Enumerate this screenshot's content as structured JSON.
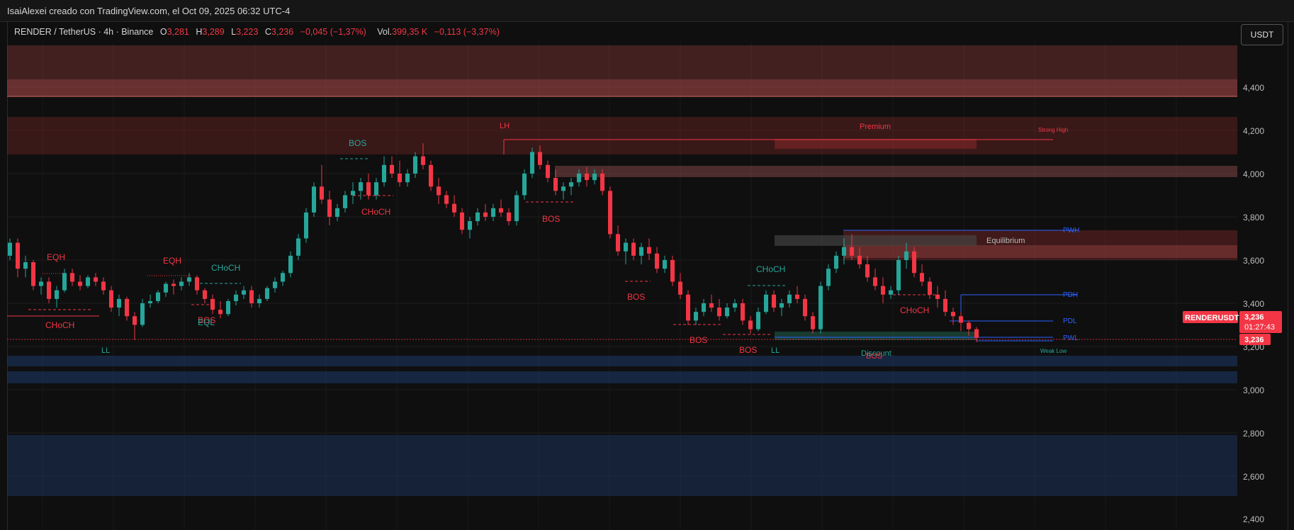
{
  "header": {
    "attribution": "IsaiAlexei creado con TradingView.com, el Oct 09, 2025 06:32 UTC-4"
  },
  "legend": {
    "symbol": "RENDER / TetherUS · 4h · Binance",
    "o_label": "O",
    "o_value": "3,281",
    "h_label": "H",
    "h_value": "3,289",
    "l_label": "L",
    "l_value": "3,223",
    "c_label": "C",
    "c_value": "3,236",
    "change": "−0,045 (−1,37%)",
    "vol_label": "Vol.",
    "vol_value": "399,35 K",
    "vol_change": "−0,113 (−3,37%)"
  },
  "toolbar": {
    "currency_label": "USDT"
  },
  "price_tags": {
    "symbol": "RENDERUSDT",
    "last_price": "3,236",
    "countdown": "01:27:43",
    "level_price": "3,236"
  },
  "colors": {
    "bull": "#26a69a",
    "bear": "#f23645",
    "background": "#0f0f0f",
    "supply_zone": "#8a3a3a",
    "demand_zone": "#1e3a6a",
    "blue_line": "#2962ff"
  },
  "chart_data": {
    "type": "candlestick",
    "symbol": "RENDER / TetherUS",
    "timeframe": "4h",
    "exchange": "Binance",
    "y_axis": {
      "ticks": [
        "4,400",
        "4,200",
        "4,000",
        "3,800",
        "3,600",
        "3,400",
        "3,200",
        "3,000",
        "2,800",
        "2,600",
        "2,400"
      ],
      "range": [
        2.38,
        4.59
      ]
    },
    "grid": true,
    "last": {
      "open": 3.281,
      "high": 3.289,
      "low": 3.223,
      "close": 3.236
    },
    "candles": [
      [
        3.62,
        3.7,
        3.6,
        3.68
      ],
      [
        3.68,
        3.7,
        3.52,
        3.56
      ],
      [
        3.56,
        3.62,
        3.52,
        3.59
      ],
      [
        3.59,
        3.6,
        3.46,
        3.48
      ],
      [
        3.48,
        3.52,
        3.44,
        3.5
      ],
      [
        3.5,
        3.52,
        3.4,
        3.42
      ],
      [
        3.42,
        3.48,
        3.38,
        3.46
      ],
      [
        3.46,
        3.56,
        3.45,
        3.54
      ],
      [
        3.54,
        3.56,
        3.48,
        3.5
      ],
      [
        3.5,
        3.53,
        3.46,
        3.48
      ],
      [
        3.48,
        3.53,
        3.47,
        3.52
      ],
      [
        3.52,
        3.54,
        3.48,
        3.5
      ],
      [
        3.5,
        3.52,
        3.44,
        3.46
      ],
      [
        3.46,
        3.48,
        3.36,
        3.38
      ],
      [
        3.38,
        3.44,
        3.34,
        3.42
      ],
      [
        3.42,
        3.43,
        3.32,
        3.34
      ],
      [
        3.34,
        3.36,
        3.23,
        3.3
      ],
      [
        3.3,
        3.42,
        3.29,
        3.4
      ],
      [
        3.4,
        3.44,
        3.38,
        3.41
      ],
      [
        3.41,
        3.46,
        3.4,
        3.45
      ],
      [
        3.45,
        3.5,
        3.43,
        3.49
      ],
      [
        3.49,
        3.51,
        3.44,
        3.48
      ],
      [
        3.48,
        3.52,
        3.46,
        3.5
      ],
      [
        3.5,
        3.54,
        3.48,
        3.52
      ],
      [
        3.52,
        3.53,
        3.44,
        3.46
      ],
      [
        3.46,
        3.47,
        3.4,
        3.42
      ],
      [
        3.42,
        3.44,
        3.35,
        3.37
      ],
      [
        3.37,
        3.41,
        3.33,
        3.35
      ],
      [
        3.35,
        3.42,
        3.34,
        3.41
      ],
      [
        3.41,
        3.46,
        3.39,
        3.44
      ],
      [
        3.44,
        3.48,
        3.42,
        3.46
      ],
      [
        3.46,
        3.48,
        3.38,
        3.4
      ],
      [
        3.4,
        3.44,
        3.38,
        3.42
      ],
      [
        3.42,
        3.48,
        3.41,
        3.47
      ],
      [
        3.47,
        3.52,
        3.45,
        3.5
      ],
      [
        3.5,
        3.55,
        3.48,
        3.54
      ],
      [
        3.54,
        3.64,
        3.52,
        3.62
      ],
      [
        3.62,
        3.72,
        3.6,
        3.7
      ],
      [
        3.7,
        3.84,
        3.68,
        3.82
      ],
      [
        3.82,
        3.96,
        3.8,
        3.94
      ],
      [
        3.94,
        4.04,
        3.86,
        3.88
      ],
      [
        3.88,
        3.92,
        3.76,
        3.8
      ],
      [
        3.8,
        3.86,
        3.78,
        3.84
      ],
      [
        3.84,
        3.92,
        3.82,
        3.9
      ],
      [
        3.9,
        3.96,
        3.86,
        3.92
      ],
      [
        3.92,
        3.98,
        3.88,
        3.96
      ],
      [
        3.96,
        4.0,
        3.88,
        3.9
      ],
      [
        3.9,
        3.98,
        3.88,
        3.96
      ],
      [
        3.96,
        4.08,
        3.94,
        4.04
      ],
      [
        4.04,
        4.08,
        3.98,
        4.0
      ],
      [
        4.0,
        4.06,
        3.94,
        3.96
      ],
      [
        3.96,
        4.02,
        3.94,
        4.0
      ],
      [
        4.0,
        4.1,
        3.98,
        4.08
      ],
      [
        4.08,
        4.14,
        4.02,
        4.04
      ],
      [
        4.04,
        4.06,
        3.92,
        3.94
      ],
      [
        3.94,
        3.98,
        3.86,
        3.9
      ],
      [
        3.9,
        3.92,
        3.84,
        3.86
      ],
      [
        3.86,
        3.9,
        3.8,
        3.82
      ],
      [
        3.82,
        3.84,
        3.72,
        3.74
      ],
      [
        3.74,
        3.8,
        3.7,
        3.78
      ],
      [
        3.78,
        3.84,
        3.76,
        3.82
      ],
      [
        3.82,
        3.86,
        3.78,
        3.8
      ],
      [
        3.8,
        3.86,
        3.78,
        3.84
      ],
      [
        3.84,
        3.88,
        3.8,
        3.82
      ],
      [
        3.82,
        3.84,
        3.76,
        3.78
      ],
      [
        3.78,
        3.92,
        3.76,
        3.9
      ],
      [
        3.9,
        4.02,
        3.88,
        4.0
      ],
      [
        4.0,
        4.12,
        3.98,
        4.1
      ],
      [
        4.1,
        4.13,
        4.02,
        4.04
      ],
      [
        4.04,
        4.06,
        3.96,
        3.98
      ],
      [
        3.98,
        4.02,
        3.9,
        3.92
      ],
      [
        3.92,
        3.96,
        3.88,
        3.94
      ],
      [
        3.94,
        3.98,
        3.9,
        3.96
      ],
      [
        3.96,
        4.02,
        3.94,
        4.0
      ],
      [
        4.0,
        4.03,
        3.94,
        3.97
      ],
      [
        3.97,
        4.02,
        3.95,
        4.0
      ],
      [
        4.0,
        4.02,
        3.9,
        3.92
      ],
      [
        3.92,
        3.94,
        3.7,
        3.72
      ],
      [
        3.72,
        3.76,
        3.62,
        3.64
      ],
      [
        3.64,
        3.7,
        3.58,
        3.68
      ],
      [
        3.68,
        3.7,
        3.6,
        3.62
      ],
      [
        3.62,
        3.68,
        3.58,
        3.66
      ],
      [
        3.66,
        3.7,
        3.6,
        3.63
      ],
      [
        3.63,
        3.66,
        3.54,
        3.56
      ],
      [
        3.56,
        3.62,
        3.54,
        3.6
      ],
      [
        3.6,
        3.62,
        3.48,
        3.5
      ],
      [
        3.5,
        3.54,
        3.42,
        3.44
      ],
      [
        3.44,
        3.46,
        3.3,
        3.32
      ],
      [
        3.32,
        3.38,
        3.3,
        3.36
      ],
      [
        3.36,
        3.42,
        3.34,
        3.4
      ],
      [
        3.4,
        3.44,
        3.36,
        3.38
      ],
      [
        3.38,
        3.42,
        3.32,
        3.34
      ],
      [
        3.34,
        3.4,
        3.33,
        3.38
      ],
      [
        3.38,
        3.42,
        3.36,
        3.4
      ],
      [
        3.4,
        3.42,
        3.3,
        3.32
      ],
      [
        3.32,
        3.34,
        3.26,
        3.28
      ],
      [
        3.28,
        3.38,
        3.27,
        3.36
      ],
      [
        3.36,
        3.46,
        3.35,
        3.44
      ],
      [
        3.44,
        3.46,
        3.36,
        3.38
      ],
      [
        3.38,
        3.42,
        3.34,
        3.4
      ],
      [
        3.4,
        3.46,
        3.38,
        3.44
      ],
      [
        3.44,
        3.48,
        3.4,
        3.42
      ],
      [
        3.42,
        3.44,
        3.32,
        3.34
      ],
      [
        3.34,
        3.36,
        3.26,
        3.28
      ],
      [
        3.28,
        3.5,
        3.26,
        3.48
      ],
      [
        3.48,
        3.58,
        3.46,
        3.56
      ],
      [
        3.56,
        3.64,
        3.54,
        3.62
      ],
      [
        3.62,
        3.7,
        3.58,
        3.66
      ],
      [
        3.66,
        3.72,
        3.6,
        3.62
      ],
      [
        3.62,
        3.66,
        3.56,
        3.58
      ],
      [
        3.58,
        3.62,
        3.5,
        3.52
      ],
      [
        3.52,
        3.56,
        3.46,
        3.48
      ],
      [
        3.48,
        3.52,
        3.4,
        3.44
      ],
      [
        3.44,
        3.48,
        3.42,
        3.46
      ],
      [
        3.46,
        3.62,
        3.44,
        3.6
      ],
      [
        3.6,
        3.68,
        3.56,
        3.64
      ],
      [
        3.64,
        3.66,
        3.52,
        3.54
      ],
      [
        3.54,
        3.58,
        3.48,
        3.5
      ],
      [
        3.5,
        3.52,
        3.42,
        3.44
      ],
      [
        3.44,
        3.48,
        3.38,
        3.42
      ],
      [
        3.42,
        3.46,
        3.34,
        3.36
      ],
      [
        3.36,
        3.38,
        3.3,
        3.34
      ],
      [
        3.34,
        3.36,
        3.27,
        3.31
      ],
      [
        3.31,
        3.32,
        3.25,
        3.28
      ],
      [
        3.28,
        3.29,
        3.22,
        3.24
      ]
    ]
  },
  "price_labels": {
    "p4400": "4,400",
    "p4200": "4,200",
    "p4000": "4,000",
    "p3800": "3,800",
    "p3600": "3,600",
    "p3400": "3,400",
    "p3200": "3,200",
    "p3000": "3,000",
    "p2800": "2,800",
    "p2600": "2,600",
    "p2400": "2,400"
  },
  "annotations": {
    "eqh_1": "EQH",
    "choch_1": "CHoCH",
    "ll_1": "LL",
    "eqh_2": "EQH",
    "bos_1": "BOS",
    "eql_1": "EQL",
    "choch_2": "CHoCH",
    "bos_2": "BOS",
    "choch_3": "CHoCH",
    "lh_1": "LH",
    "bos_3": "BOS",
    "bos_4": "BOS",
    "bos_5": "BOS",
    "bos_6": "BOS",
    "ll_2": "LL",
    "choch_4": "CHoCH",
    "choch_5": "CHoCH",
    "bos_7": "BOS",
    "premium": "Premium",
    "equilibrium": "Equilibrium",
    "discount": "Discount",
    "strong_high": "Strong High",
    "weak_low": "Weak Low",
    "pwh": "PWH",
    "pdh": "PDH",
    "pdl": "PDL",
    "pwl": "PWL"
  }
}
